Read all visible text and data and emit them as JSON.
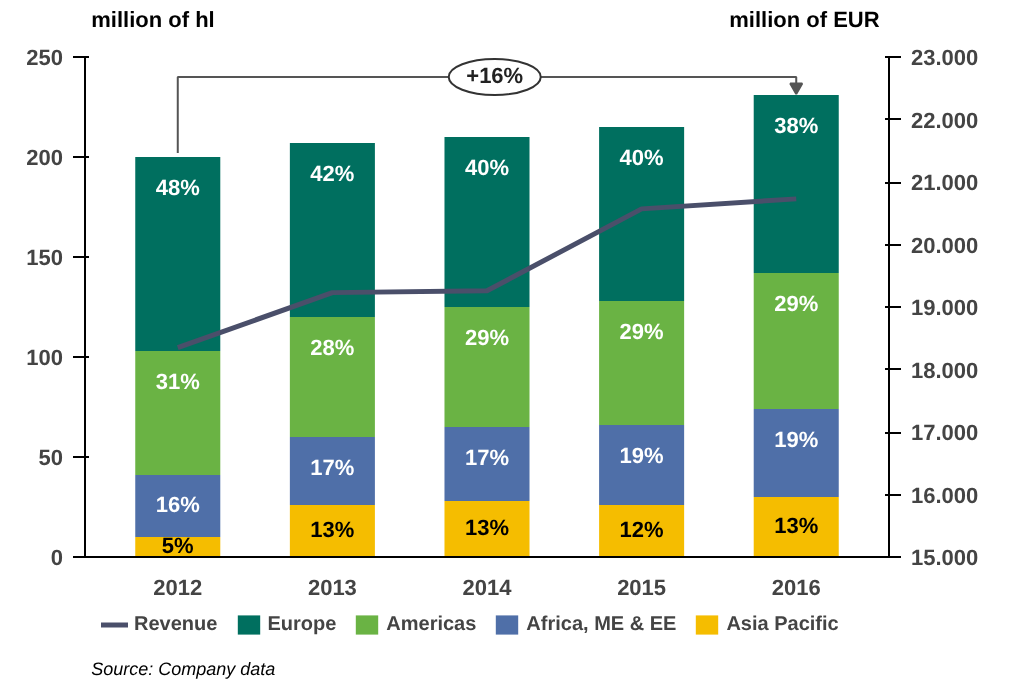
{
  "chart_data": {
    "type": "bar",
    "stacked": true,
    "ylabel": "million of hl",
    "y2label": "million of EUR",
    "categories": [
      "2012",
      "2013",
      "2014",
      "2015",
      "2016"
    ],
    "series": [
      {
        "name": "Asia Pacific",
        "color": "#f5bd00",
        "values": [
          10,
          26,
          28,
          26,
          30
        ]
      },
      {
        "name": "Africa, ME & EE",
        "color": "#4f6fa8",
        "values": [
          31,
          34,
          37,
          40,
          44
        ]
      },
      {
        "name": "Americas",
        "color": "#6ab344",
        "values": [
          62,
          60,
          60,
          62,
          68
        ]
      },
      {
        "name": "Europe",
        "color": "#006f5f",
        "values": [
          97,
          87,
          85,
          87,
          89
        ]
      },
      {
        "name": "Revenue",
        "type": "line",
        "axis": "y2",
        "color": "#4a4f6a",
        "values": [
          18350,
          19230,
          19260,
          20570,
          20730
        ]
      }
    ],
    "ylim": [
      0,
      250
    ],
    "yticks": [
      0,
      50,
      100,
      150,
      200,
      250
    ],
    "y2lim": [
      15000,
      23000
    ],
    "y2ticks": [
      {
        "value": 15000,
        "label": "15.000"
      },
      {
        "value": 16000,
        "label": "16.000"
      },
      {
        "value": 17000,
        "label": "17.000"
      },
      {
        "value": 18000,
        "label": "18.000"
      },
      {
        "value": 19000,
        "label": "19.000"
      },
      {
        "value": 20000,
        "label": "20.000"
      },
      {
        "value": 21000,
        "label": "21.000"
      },
      {
        "value": 22000,
        "label": "22.000"
      },
      {
        "value": 23000,
        "label": "23.000"
      }
    ],
    "annotations": [
      "+16%",
      {
        "text": "5%",
        "x": "2012",
        "y": 10
      },
      {
        "text": "16%",
        "x": "2012",
        "y": 41
      },
      {
        "text": "31%",
        "x": "2012",
        "y": 103
      },
      {
        "text": "48%",
        "x": "2012",
        "y": 200
      },
      {
        "text": "13%",
        "x": "2013",
        "y": 26
      },
      {
        "text": "17%",
        "x": "2013",
        "y": 60
      },
      {
        "text": "28%",
        "x": "2013",
        "y": 120
      },
      {
        "text": "42%",
        "x": "2013",
        "y": 207
      },
      {
        "text": "13%",
        "x": "2014",
        "y": 28
      },
      {
        "text": "17%",
        "x": "2014",
        "y": 65
      },
      {
        "text": "29%",
        "x": "2014",
        "y": 125
      },
      {
        "text": "40%",
        "x": "2014",
        "y": 210
      },
      {
        "text": "12%",
        "x": "2015",
        "y": 26
      },
      {
        "text": "19%",
        "x": "2015",
        "y": 66
      },
      {
        "text": "29%",
        "x": "2015",
        "y": 128
      },
      {
        "text": "40%",
        "x": "2015",
        "y": 215
      },
      {
        "text": "13%",
        "x": "2016",
        "y": 30
      },
      {
        "text": "19%",
        "x": "2016",
        "y": 74
      },
      {
        "text": "29%",
        "x": "2016",
        "y": 142
      },
      {
        "text": "38%",
        "x": "2016",
        "y": 231
      },
      "Source: Company data"
    ],
    "grid": false,
    "legend": "bottom"
  }
}
